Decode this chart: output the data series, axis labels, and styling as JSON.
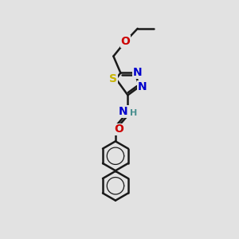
{
  "background_color": "#e2e2e2",
  "bond_color": "#1a1a1a",
  "S_color": "#c8b400",
  "N_color": "#0000cc",
  "O_color": "#cc0000",
  "H_color": "#4a9090",
  "bond_width": 1.8,
  "font_size_atom": 10,
  "font_size_H": 8,
  "figsize": [
    3.0,
    3.0
  ],
  "dpi": 100,
  "xlim": [
    0,
    10
  ],
  "ylim": [
    0,
    10
  ]
}
